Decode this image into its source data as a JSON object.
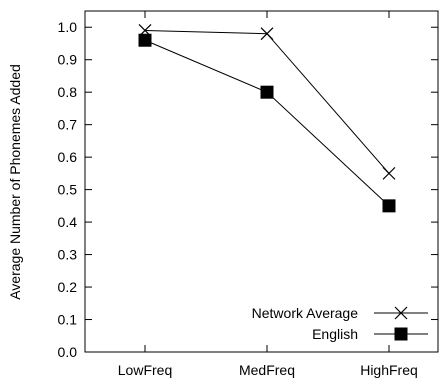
{
  "chart_data": {
    "type": "line",
    "categories": [
      "LowFreq",
      "MedFreq",
      "HighFreq"
    ],
    "series": [
      {
        "name": "Network Average",
        "values": [
          0.99,
          0.98,
          0.55
        ],
        "marker": "x"
      },
      {
        "name": "English",
        "values": [
          0.96,
          0.8,
          0.45
        ],
        "marker": "filled-square"
      }
    ],
    "title": "",
    "xlabel": "",
    "ylabel": "Average Number of Phonemes Added",
    "ylim": [
      0.0,
      1.05
    ],
    "yticks": [
      "0.0",
      "0.1",
      "0.2",
      "0.3",
      "0.4",
      "0.5",
      "0.6",
      "0.7",
      "0.8",
      "0.9",
      "1.0"
    ],
    "grid": false,
    "legend_position": "bottom-right",
    "colors": {
      "line": "#000000",
      "background": "#ffffff"
    }
  }
}
